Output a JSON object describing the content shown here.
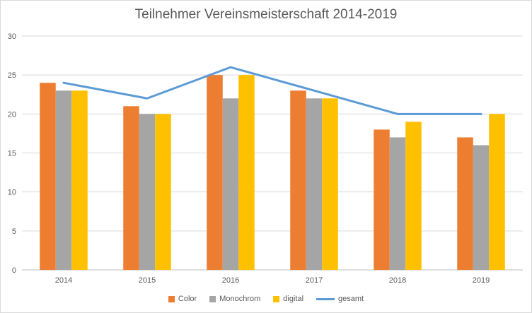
{
  "chart_data": {
    "type": "bar",
    "title": "Teilnehmer Vereinsmeisterschaft 2014-2019",
    "categories": [
      "2014",
      "2015",
      "2016",
      "2017",
      "2018",
      "2019"
    ],
    "series": [
      {
        "name": "Color",
        "kind": "bar",
        "color": "#ED7D31",
        "values": [
          24,
          21,
          25,
          23,
          18,
          17
        ]
      },
      {
        "name": "Monochrom",
        "kind": "bar",
        "color": "#A5A5A5",
        "values": [
          23,
          20,
          22,
          22,
          17,
          16
        ]
      },
      {
        "name": "digital",
        "kind": "bar",
        "color": "#FFC000",
        "values": [
          23,
          20,
          25,
          22,
          19,
          20
        ]
      },
      {
        "name": "gesamt",
        "kind": "line",
        "color": "#5B9BD5",
        "values": [
          24,
          22,
          26,
          23,
          20,
          20
        ]
      }
    ],
    "ylim": [
      0,
      30
    ],
    "yticks": [
      "0",
      "5",
      "10",
      "15",
      "20",
      "25",
      "30"
    ],
    "grid": true,
    "legend_position": "bottom"
  }
}
